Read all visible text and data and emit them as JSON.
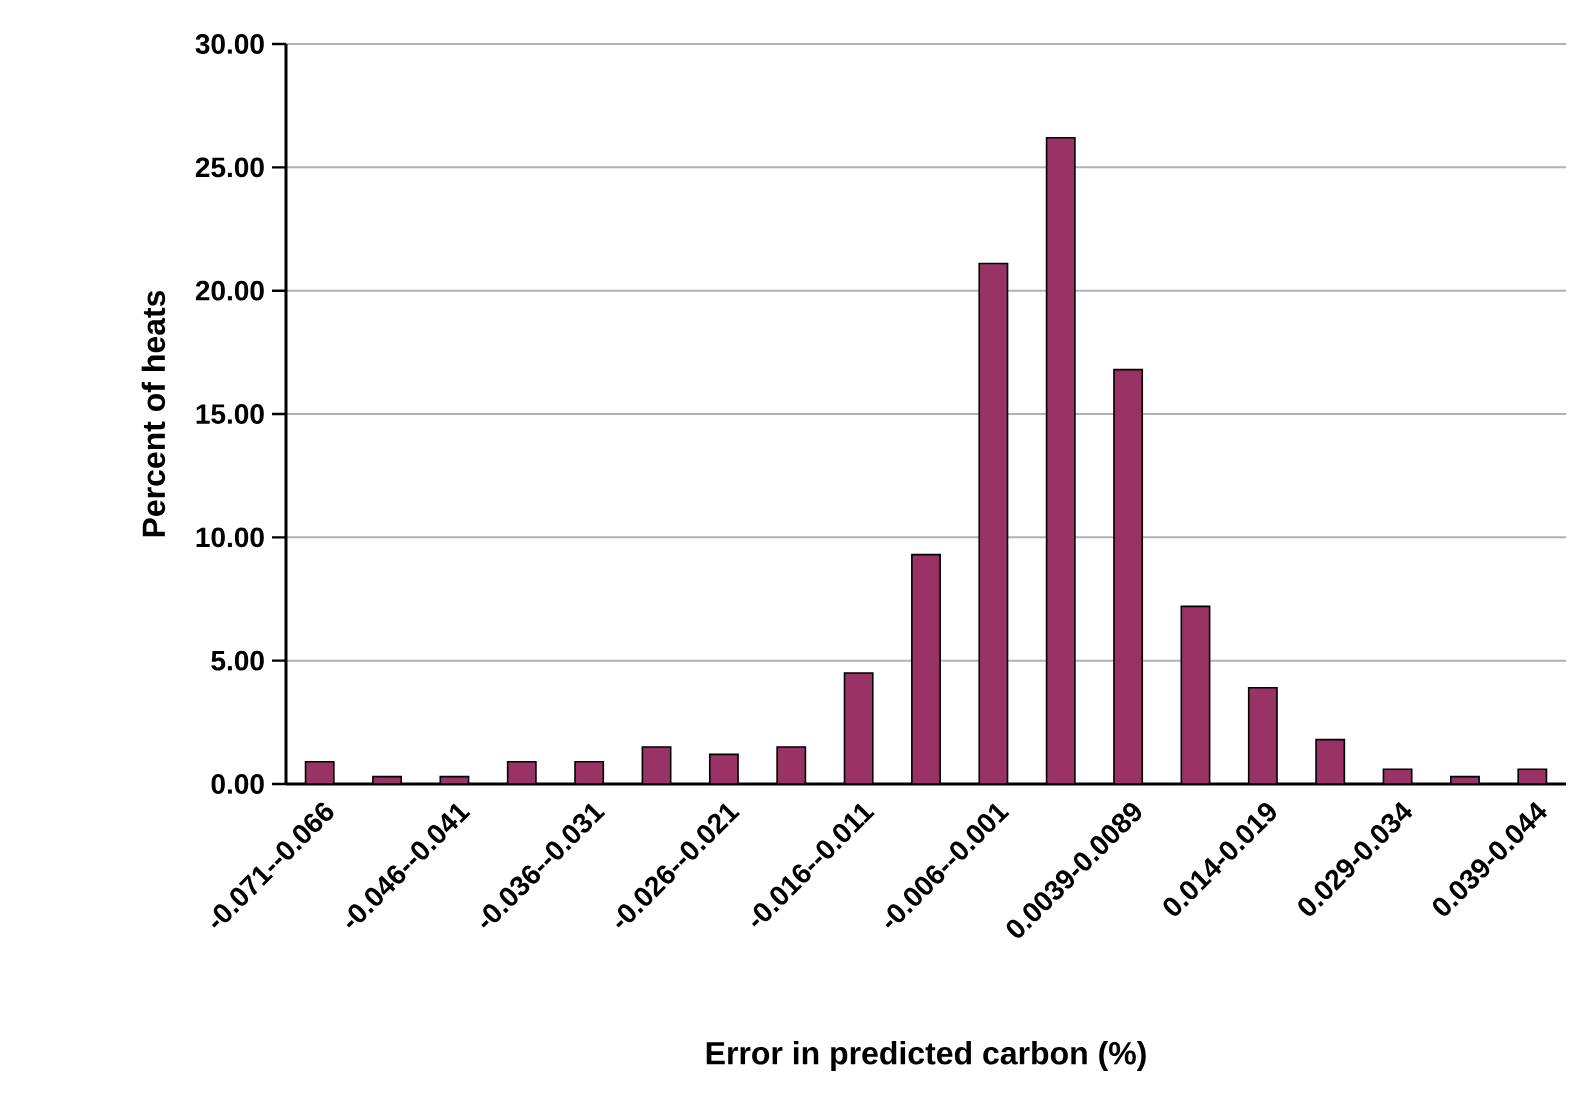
{
  "chart_data": {
    "type": "bar",
    "xlabel": "Error in predicted carbon (%)",
    "ylabel": "Percent of heats",
    "categories": [
      "-0.071--0.066",
      null,
      "-0.046--0.041",
      null,
      "-0.036--0.031",
      null,
      "-0.026--0.021",
      null,
      "-0.016--0.011",
      null,
      "-0.006--0.001",
      null,
      "0.0039-0.0089",
      null,
      "0.014-0.019",
      null,
      "0.029-0.034",
      null,
      "0.039-0.044"
    ],
    "values": [
      0.9,
      0.3,
      0.3,
      0.9,
      0.9,
      1.5,
      1.2,
      1.5,
      4.5,
      9.3,
      21.1,
      26.2,
      16.8,
      7.2,
      3.9,
      1.8,
      0.6,
      0.3,
      0.6
    ],
    "color": "#993366",
    "ylim": [
      0,
      30
    ],
    "yticks": [
      {
        "value": 0,
        "label": "0.00"
      },
      {
        "value": 5,
        "label": "5.00"
      },
      {
        "value": 10,
        "label": "10.00"
      },
      {
        "value": 15,
        "label": "15.00"
      },
      {
        "value": 20,
        "label": "20.00"
      },
      {
        "value": 25,
        "label": "25.00"
      },
      {
        "value": 30,
        "label": "30.00"
      }
    ],
    "grid": "y"
  }
}
